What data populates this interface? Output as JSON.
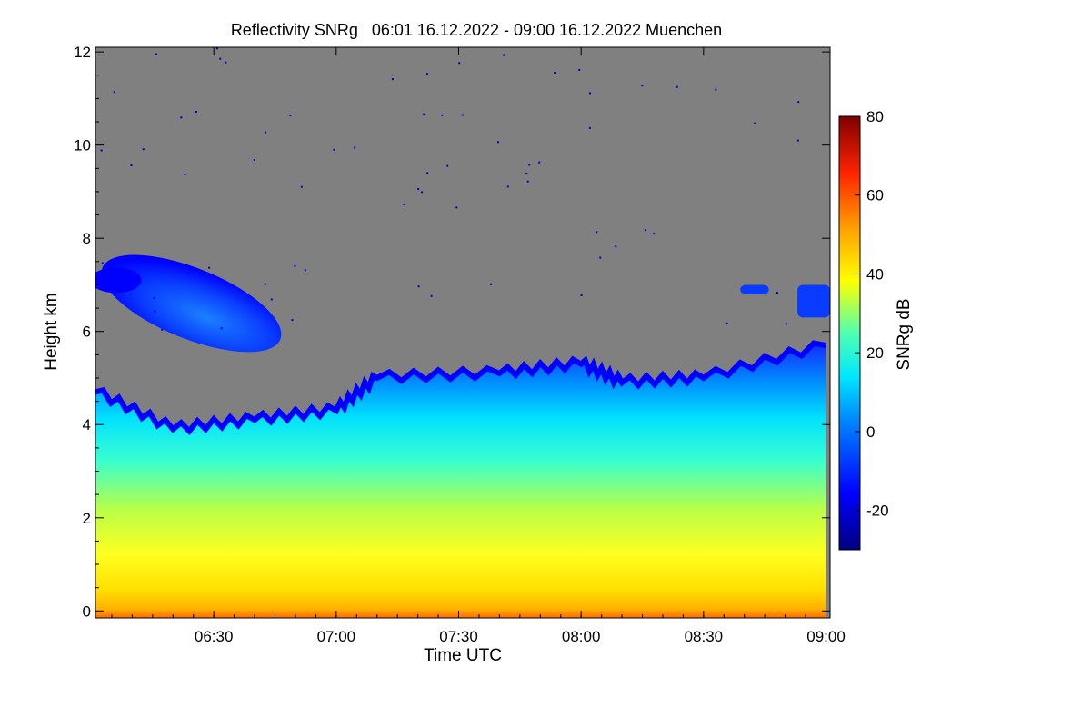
{
  "chart_data": {
    "type": "heatmap",
    "title": "Reflectivity SNRg   06:01 16.12.2022 - 09:00 16.12.2022 Muenchen",
    "xlabel": "Time UTC",
    "ylabel": "Height km",
    "x_tick_labels": [
      "06:30",
      "07:00",
      "07:30",
      "08:00",
      "08:30",
      "09:00"
    ],
    "x_tick_values_min": [
      390,
      420,
      450,
      480,
      510,
      540
    ],
    "xlim_min": [
      361,
      541
    ],
    "y_tick_labels": [
      "0",
      "2",
      "4",
      "6",
      "8",
      "10",
      "12"
    ],
    "y_tick_values": [
      0,
      2,
      4,
      6,
      8,
      10,
      12
    ],
    "ylim": [
      -0.15,
      12.1
    ],
    "colorbar": {
      "label": "SNRg dB",
      "range": [
        -30,
        80
      ],
      "tick_labels": [
        "-20",
        "0",
        "20",
        "40",
        "60",
        "80"
      ],
      "tick_values": [
        -20,
        0,
        20,
        40,
        60,
        80
      ]
    },
    "background_color": "#808080",
    "features": [
      {
        "name": "main_echo",
        "cloud_top_km_profile": [
          {
            "t": 361,
            "top": 4.7
          },
          {
            "t": 380,
            "top": 3.9
          },
          {
            "t": 400,
            "top": 4.1
          },
          {
            "t": 420,
            "top": 4.3
          },
          {
            "t": 430,
            "top": 5.0
          },
          {
            "t": 460,
            "top": 5.1
          },
          {
            "t": 480,
            "top": 5.3
          },
          {
            "t": 490,
            "top": 4.9
          },
          {
            "t": 510,
            "top": 5.0
          },
          {
            "t": 540,
            "top": 5.7
          }
        ]
      },
      {
        "name": "elevated_layer",
        "t_range": [
          361,
          408
        ],
        "height_km": [
          5.7,
          7.5
        ]
      },
      {
        "name": "small_patch_1",
        "t_range": [
          519,
          526
        ],
        "height_km": [
          6.8,
          7.0
        ]
      },
      {
        "name": "small_patch_2",
        "t_range": [
          533,
          541
        ],
        "height_km": [
          6.3,
          7.0
        ]
      }
    ]
  }
}
